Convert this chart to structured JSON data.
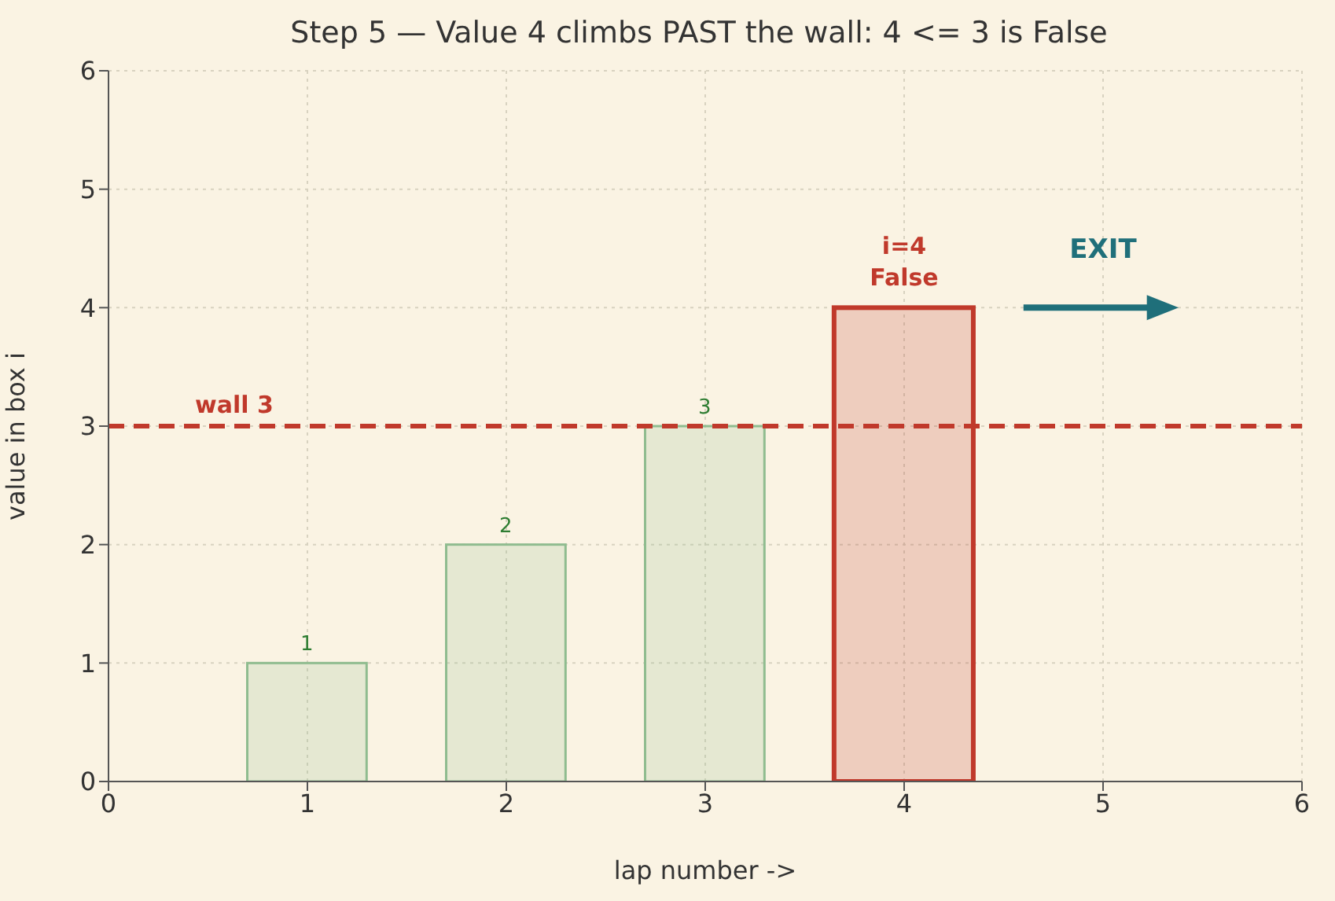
{
  "chart_data": {
    "type": "bar",
    "title": "Step 5 — Value 4 climbs PAST the wall: 4 <= 3 is False",
    "xlabel": "lap number ->",
    "ylabel": "value in box i",
    "x": [
      1,
      2,
      3,
      4
    ],
    "values": [
      1,
      2,
      3,
      4
    ],
    "colors": [
      "#8fbc8f",
      "#8fbc8f",
      "#8fbc8f",
      "#c0392b"
    ],
    "value_labels": [
      "1",
      "2",
      "3",
      null
    ],
    "xlim": [
      0,
      6
    ],
    "xticks": [
      0,
      1,
      2,
      3,
      4,
      5,
      6
    ],
    "ylim": [
      0,
      6
    ],
    "yticks": [
      0,
      1,
      2,
      3,
      4,
      5,
      6
    ],
    "ref_lines": [
      {
        "axis": "y",
        "value": 3,
        "label": "wall 3",
        "color": "#c0392b",
        "line_style": "dashed"
      }
    ],
    "annotations": [
      {
        "text": "i=4\nFalse",
        "x": 4,
        "y": 4
      },
      "EXIT"
    ],
    "grid": true
  }
}
